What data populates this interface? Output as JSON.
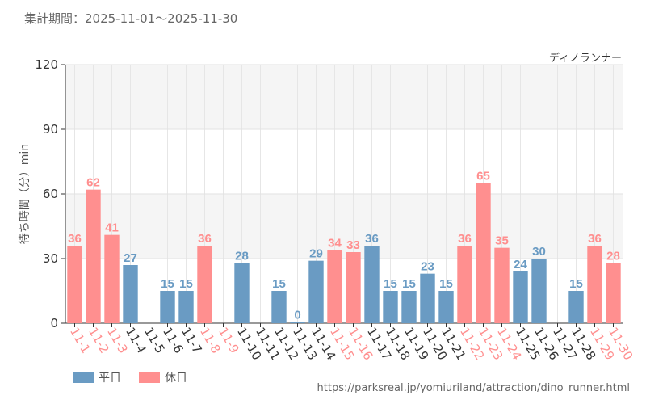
{
  "header": {
    "period": "集計期間：2025-11-01～2025-11-30"
  },
  "footer": {
    "source": "https://parksreal.jp/yomiuriland/attraction/dino_runner.html"
  },
  "legend": [
    {
      "label": "平日",
      "color": "#6a9bc3"
    },
    {
      "label": "休日",
      "color": "#ff8f8f"
    }
  ],
  "chart_data": {
    "type": "bar",
    "title": "ディノランナー",
    "ylabel": "待ち時間（分）min",
    "xlabel": "",
    "ylim": [
      0,
      120
    ],
    "yticks": [
      0,
      30,
      60,
      90,
      120
    ],
    "categories": [
      "11-1",
      "11-2",
      "11-3",
      "11-4",
      "11-5",
      "11-6",
      "11-7",
      "11-8",
      "11-9",
      "11-10",
      "11-11",
      "11-12",
      "11-13",
      "11-14",
      "11-15",
      "11-16",
      "11-17",
      "11-18",
      "11-19",
      "11-20",
      "11-21",
      "11-22",
      "11-23",
      "11-24",
      "11-25",
      "11-26",
      "11-27",
      "11-28",
      "11-29",
      "11-30"
    ],
    "values": [
      36,
      62,
      41,
      27,
      null,
      15,
      15,
      36,
      null,
      28,
      null,
      15,
      0,
      29,
      34,
      33,
      36,
      15,
      15,
      23,
      15,
      36,
      65,
      35,
      24,
      30,
      null,
      15,
      36,
      28
    ],
    "day_type": [
      "holiday",
      "holiday",
      "holiday",
      "weekday",
      "weekday",
      "weekday",
      "weekday",
      "holiday",
      "holiday",
      "weekday",
      "weekday",
      "weekday",
      "weekday",
      "weekday",
      "holiday",
      "holiday",
      "weekday",
      "weekday",
      "weekday",
      "weekday",
      "weekday",
      "holiday",
      "holiday",
      "holiday",
      "weekday",
      "weekday",
      "weekday",
      "weekday",
      "holiday",
      "holiday"
    ],
    "colors": {
      "weekday": "#6a9bc3",
      "holiday": "#ff8f8f",
      "weekday_label": "#6a9bc3",
      "holiday_label": "#ff8f8f"
    },
    "grid": true
  }
}
